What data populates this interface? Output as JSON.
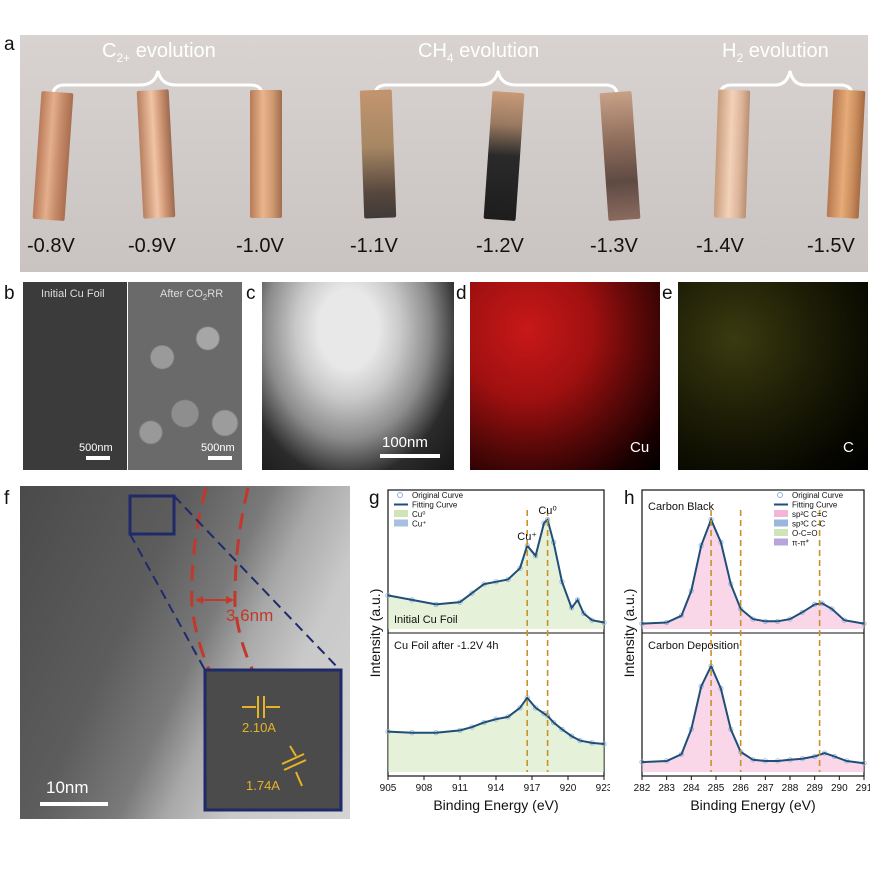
{
  "panels": {
    "a": "a",
    "b": "b",
    "c": "c",
    "d": "d",
    "e": "e",
    "f": "f",
    "g": "g",
    "h": "h"
  },
  "panel_a": {
    "groups": [
      {
        "label": "C",
        "sub": "2+",
        "suffix": " evolution"
      },
      {
        "label": "CH",
        "sub": "4",
        "suffix": " evolution"
      },
      {
        "label": "H",
        "sub": "2",
        "suffix": " evolution"
      }
    ],
    "potentials": [
      "-0.8V",
      "-0.9V",
      "-1.0V",
      "-1.1V",
      "-1.2V",
      "-1.3V",
      "-1.4V",
      "-1.5V"
    ]
  },
  "panel_b": {
    "left_title": "Initial Cu Foil",
    "right_title_pre": "After CO",
    "right_title_sub": "2",
    "right_title_post": "RR",
    "scale_left": "500nm",
    "scale_right": "500nm"
  },
  "panel_c": {
    "scale": "100nm"
  },
  "panel_d": {
    "element": "Cu"
  },
  "panel_e": {
    "element": "C"
  },
  "panel_f": {
    "thickness": "3.6nm",
    "d1": "2.10A",
    "d2": "1.74A",
    "scale": "10nm"
  },
  "colors": {
    "copper": "#c98f6a",
    "fit_curve": "#1f4e79",
    "cu0_fill": "#cfe5b8",
    "cu1_fill": "#a9bfe0",
    "bg_fill": "#e7a9a9",
    "sp2_fill": "#f4b6d6",
    "sp3_fill": "#9ab6dc",
    "oco_fill": "#cfe5b8",
    "pi_fill": "#b6a6dc",
    "guide": "#c8912a",
    "annot_red": "#c0392b",
    "annot_navy": "#1f2a6b",
    "annot_yellow": "#e6b325"
  },
  "chart_data": [
    {
      "type": "line",
      "panel": "g",
      "xlabel": "Binding Energy (eV)",
      "ylabel": "Intensity (a.u.)",
      "xlim": [
        905,
        923
      ],
      "xticks": [
        905,
        908,
        911,
        914,
        917,
        920,
        923
      ],
      "legend": [
        "Original Curve",
        "Fitting Curve",
        "Cu⁰",
        "Cu⁺"
      ],
      "peak_labels": [
        "Cu⁺",
        "Cu⁰"
      ],
      "guide_lines_x": [
        916.6,
        918.3
      ],
      "subplots": [
        {
          "title": "Initial Cu Foil",
          "x": [
            905,
            907,
            909,
            911,
            912,
            913,
            914,
            915,
            916,
            916.6,
            917.3,
            918.0,
            918.3,
            918.8,
            919.5,
            920.3,
            920.8,
            921.3,
            922,
            923
          ],
          "y": [
            0.28,
            0.24,
            0.2,
            0.22,
            0.3,
            0.38,
            0.4,
            0.42,
            0.52,
            0.72,
            0.63,
            0.92,
            0.95,
            0.75,
            0.4,
            0.17,
            0.24,
            0.12,
            0.06,
            0.04
          ]
        },
        {
          "title": "Cu Foil after -1.2V 4h",
          "x": [
            905,
            907,
            909,
            911,
            912,
            913,
            914,
            915,
            916,
            916.6,
            917.3,
            918.0,
            918.3,
            918.8,
            919.5,
            920.3,
            921,
            922,
            923
          ],
          "y": [
            0.34,
            0.33,
            0.33,
            0.35,
            0.38,
            0.42,
            0.45,
            0.47,
            0.55,
            0.64,
            0.55,
            0.5,
            0.48,
            0.42,
            0.36,
            0.3,
            0.26,
            0.24,
            0.23
          ]
        }
      ]
    },
    {
      "type": "line",
      "panel": "h",
      "xlabel": "Binding Energy (eV)",
      "ylabel": "Intensity (a.u.)",
      "xlim": [
        282,
        291
      ],
      "xticks": [
        282,
        283,
        284,
        285,
        286,
        287,
        288,
        289,
        290,
        291
      ],
      "legend": [
        "Original Curve",
        "Fitting Curve",
        "sp²C C=C",
        "sp³C C-C",
        "O-C=O",
        "π-π*"
      ],
      "guide_lines_x": [
        284.8,
        286.0,
        289.2
      ],
      "subplots": [
        {
          "title": "Carbon Black",
          "x": [
            282,
            283,
            283.6,
            284.0,
            284.4,
            284.8,
            285.2,
            285.6,
            286.0,
            286.5,
            287.0,
            287.5,
            288.0,
            288.5,
            289.0,
            289.3,
            289.7,
            290.2,
            291
          ],
          "y": [
            0.03,
            0.04,
            0.1,
            0.32,
            0.72,
            0.95,
            0.75,
            0.38,
            0.16,
            0.07,
            0.05,
            0.05,
            0.07,
            0.13,
            0.2,
            0.21,
            0.16,
            0.06,
            0.03
          ]
        },
        {
          "title": "Carbon Deposition",
          "x": [
            282,
            283,
            283.6,
            284.0,
            284.4,
            284.8,
            285.2,
            285.6,
            286.0,
            286.5,
            287.0,
            287.5,
            288.0,
            288.5,
            289.0,
            289.4,
            289.8,
            290.3,
            291
          ],
          "y": [
            0.07,
            0.08,
            0.14,
            0.36,
            0.74,
            0.92,
            0.72,
            0.36,
            0.16,
            0.09,
            0.08,
            0.08,
            0.09,
            0.1,
            0.12,
            0.15,
            0.12,
            0.08,
            0.06
          ]
        }
      ]
    }
  ]
}
